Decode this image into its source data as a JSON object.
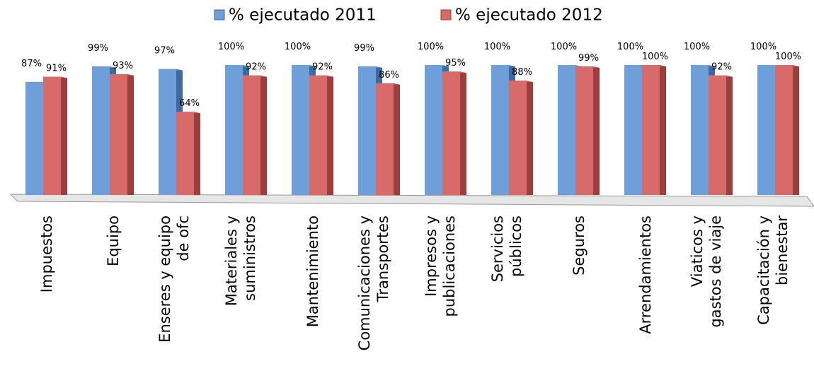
{
  "chart_data": {
    "type": "bar",
    "categories": [
      "Impuestos",
      "Equipo",
      "Enseres y equipo de ofc",
      "Materiales y suministros",
      "Mantenimiento",
      "Comunicaciones y Transportes",
      "Impresos y publicaciones",
      "Servicios públicos",
      "Seguros",
      "Arrendamientos",
      "Viaticos y gastos de viaje",
      "Capacitación y bienestar"
    ],
    "series": [
      {
        "name": "% ejecutado 2011",
        "color": "#6f9fd8",
        "side": "#3e6aa0",
        "values": [
          87,
          99,
          97,
          100,
          100,
          99,
          100,
          100,
          100,
          100,
          100,
          100
        ],
        "value_labels": [
          "87%",
          "99%",
          "97%",
          "100%",
          "100%",
          "99%",
          "100%",
          "100%",
          "100%",
          "100%",
          "100%",
          "100%"
        ]
      },
      {
        "name": "% ejecutado 2012",
        "color": "#d96a6a",
        "side": "#9c3e3e",
        "values": [
          91,
          93,
          64,
          92,
          92,
          86,
          95,
          88,
          99,
          100,
          92,
          100
        ],
        "value_labels": [
          "91%",
          "93%",
          "64%",
          "92%",
          "92%",
          "86%",
          "95%",
          "88%",
          "99%",
          "100%",
          "92%",
          "100%"
        ]
      }
    ],
    "ylim": [
      0,
      100
    ],
    "legend": "top"
  }
}
